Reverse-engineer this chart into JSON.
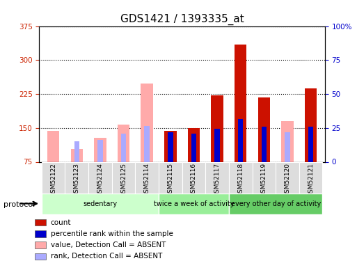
{
  "title": "GDS1421 / 1393335_at",
  "samples": [
    "GSM52122",
    "GSM52123",
    "GSM52124",
    "GSM52125",
    "GSM52114",
    "GSM52115",
    "GSM52116",
    "GSM52117",
    "GSM52118",
    "GSM52119",
    "GSM52120",
    "GSM52121"
  ],
  "groups": [
    {
      "label": "sedentary",
      "indices": [
        0,
        1,
        2,
        3,
        4
      ]
    },
    {
      "label": "twice a week of activity",
      "indices": [
        5,
        6,
        7
      ]
    },
    {
      "label": "every other day of activity",
      "indices": [
        8,
        9,
        10,
        11
      ]
    }
  ],
  "ymin": 75,
  "ymax": 375,
  "yticks_left": [
    75,
    150,
    225,
    300,
    375
  ],
  "yticks_right_vals": [
    0,
    25,
    50,
    75,
    100
  ],
  "count_color": "#cc1100",
  "rank_color": "#0000cc",
  "absent_value_color": "#ffaaaa",
  "absent_rank_color": "#aaaaff",
  "bars": [
    {
      "absent": true,
      "value": 143,
      "rank": null,
      "count": null,
      "percentile": null
    },
    {
      "absent": true,
      "value": 103,
      "rank": 120,
      "count": null,
      "percentile": null
    },
    {
      "absent": true,
      "value": 128,
      "rank": 123,
      "count": null,
      "percentile": null
    },
    {
      "absent": true,
      "value": 158,
      "rank": 138,
      "count": null,
      "percentile": null
    },
    {
      "absent": true,
      "value": 248,
      "rank": 155,
      "count": null,
      "percentile": null
    },
    {
      "absent": false,
      "value": null,
      "rank": null,
      "count": 143,
      "percentile": 140
    },
    {
      "absent": false,
      "value": null,
      "rank": null,
      "count": 150,
      "percentile": 138
    },
    {
      "absent": false,
      "value": null,
      "rank": null,
      "count": 222,
      "percentile": 148
    },
    {
      "absent": false,
      "value": null,
      "rank": null,
      "count": 335,
      "percentile": 170
    },
    {
      "absent": false,
      "value": null,
      "rank": null,
      "count": 218,
      "percentile": 152
    },
    {
      "absent": true,
      "value": 165,
      "rank": 140,
      "count": null,
      "percentile": null
    },
    {
      "absent": false,
      "value": null,
      "rank": null,
      "count": 238,
      "percentile": 153
    }
  ],
  "legend_items": [
    {
      "label": "count",
      "color": "#cc1100"
    },
    {
      "label": "percentile rank within the sample",
      "color": "#0000cc"
    },
    {
      "label": "value, Detection Call = ABSENT",
      "color": "#ffaaaa"
    },
    {
      "label": "rank, Detection Call = ABSENT",
      "color": "#aaaaff"
    }
  ],
  "group_colors": [
    "#ccffcc",
    "#99ee99",
    "#66cc66"
  ],
  "title_fontsize": 11,
  "tick_fontsize": 7.5,
  "label_fontsize": 8
}
